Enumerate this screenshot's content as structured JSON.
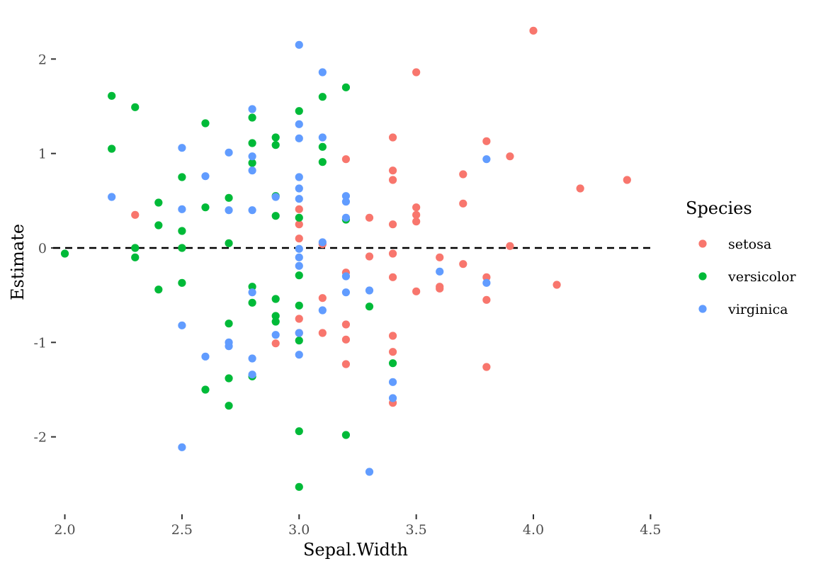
{
  "chart_data": {
    "type": "scatter",
    "xlabel": "Sepal.Width",
    "ylabel": "Estimate",
    "xlim": [
      1.95,
      4.52
    ],
    "ylim": [
      -2.7,
      2.4
    ],
    "x_ticks": [
      2.0,
      2.5,
      3.0,
      3.5,
      4.0,
      4.5
    ],
    "x_tick_labels": [
      "2.0",
      "2.5",
      "3.0",
      "3.5",
      "4.0",
      "4.5"
    ],
    "y_ticks": [
      -2,
      -1,
      0,
      1,
      2
    ],
    "y_tick_labels": [
      "-2",
      "-1",
      "0",
      "1",
      "2"
    ],
    "grid": false,
    "reference_line": {
      "y": 0,
      "style": "dashed"
    },
    "legend": {
      "title": "Species",
      "position": "right"
    },
    "series": [
      {
        "name": "setosa",
        "color": "#F8766D",
        "points": [
          [
            2.3,
            0.35
          ],
          [
            3.0,
            0.41
          ],
          [
            3.0,
            0.25
          ],
          [
            3.0,
            0.1
          ],
          [
            3.0,
            -0.75
          ],
          [
            3.0,
            -0.9
          ],
          [
            2.9,
            -1.01
          ],
          [
            3.1,
            -0.53
          ],
          [
            3.1,
            -0.9
          ],
          [
            3.1,
            0.04
          ],
          [
            3.2,
            0.94
          ],
          [
            3.2,
            -0.26
          ],
          [
            3.2,
            -0.81
          ],
          [
            3.2,
            -0.97
          ],
          [
            3.2,
            -1.23
          ],
          [
            3.3,
            0.32
          ],
          [
            3.3,
            -0.09
          ],
          [
            3.4,
            1.17
          ],
          [
            3.4,
            0.82
          ],
          [
            3.4,
            0.72
          ],
          [
            3.4,
            0.25
          ],
          [
            3.4,
            -0.06
          ],
          [
            3.4,
            -0.31
          ],
          [
            3.4,
            -0.93
          ],
          [
            3.4,
            -1.1
          ],
          [
            3.4,
            -1.64
          ],
          [
            3.5,
            1.86
          ],
          [
            3.5,
            0.43
          ],
          [
            3.5,
            0.35
          ],
          [
            3.5,
            0.28
          ],
          [
            3.5,
            -0.46
          ],
          [
            3.6,
            -0.1
          ],
          [
            3.6,
            -0.41
          ],
          [
            3.6,
            -0.43
          ],
          [
            3.7,
            0.78
          ],
          [
            3.7,
            0.47
          ],
          [
            3.7,
            -0.17
          ],
          [
            3.8,
            1.13
          ],
          [
            3.8,
            -0.31
          ],
          [
            3.8,
            -0.55
          ],
          [
            3.8,
            -1.26
          ],
          [
            3.9,
            0.97
          ],
          [
            3.9,
            0.02
          ],
          [
            4.0,
            2.3
          ],
          [
            4.1,
            -0.39
          ],
          [
            4.2,
            0.63
          ],
          [
            4.4,
            0.72
          ]
        ]
      },
      {
        "name": "versicolor",
        "color": "#00BA38",
        "points": [
          [
            2.0,
            -0.06
          ],
          [
            2.2,
            1.61
          ],
          [
            2.2,
            1.05
          ],
          [
            2.3,
            1.49
          ],
          [
            2.3,
            0.0
          ],
          [
            2.3,
            -0.1
          ],
          [
            2.4,
            0.48
          ],
          [
            2.4,
            0.24
          ],
          [
            2.4,
            -0.44
          ],
          [
            2.5,
            0.75
          ],
          [
            2.5,
            0.18
          ],
          [
            2.5,
            0.0
          ],
          [
            2.5,
            -0.37
          ],
          [
            2.6,
            1.32
          ],
          [
            2.6,
            0.43
          ],
          [
            2.6,
            -1.5
          ],
          [
            2.7,
            0.53
          ],
          [
            2.7,
            0.05
          ],
          [
            2.7,
            -0.8
          ],
          [
            2.7,
            -1.38
          ],
          [
            2.7,
            -1.67
          ],
          [
            2.8,
            1.38
          ],
          [
            2.8,
            1.11
          ],
          [
            2.8,
            0.9
          ],
          [
            2.8,
            -0.41
          ],
          [
            2.8,
            -0.58
          ],
          [
            2.8,
            -1.36
          ],
          [
            2.9,
            1.17
          ],
          [
            2.9,
            1.09
          ],
          [
            2.9,
            0.55
          ],
          [
            2.9,
            0.34
          ],
          [
            2.9,
            -0.54
          ],
          [
            2.9,
            -0.72
          ],
          [
            2.9,
            -0.78
          ],
          [
            3.0,
            1.45
          ],
          [
            3.0,
            0.32
          ],
          [
            3.0,
            -0.29
          ],
          [
            3.0,
            -0.61
          ],
          [
            3.0,
            -0.98
          ],
          [
            3.0,
            -1.94
          ],
          [
            3.0,
            -2.53
          ],
          [
            3.1,
            1.6
          ],
          [
            3.1,
            1.07
          ],
          [
            3.1,
            0.91
          ],
          [
            3.2,
            1.7
          ],
          [
            3.2,
            0.3
          ],
          [
            3.2,
            -1.98
          ],
          [
            3.3,
            -0.62
          ],
          [
            3.4,
            -1.22
          ]
        ]
      },
      {
        "name": "virginica",
        "color": "#619CFF",
        "points": [
          [
            2.2,
            0.54
          ],
          [
            2.5,
            1.06
          ],
          [
            2.5,
            0.41
          ],
          [
            2.5,
            -0.82
          ],
          [
            2.5,
            -2.11
          ],
          [
            2.6,
            0.76
          ],
          [
            2.6,
            -1.15
          ],
          [
            2.7,
            1.01
          ],
          [
            2.7,
            0.4
          ],
          [
            2.7,
            -1.0
          ],
          [
            2.7,
            -1.04
          ],
          [
            2.8,
            1.47
          ],
          [
            2.8,
            0.97
          ],
          [
            2.8,
            0.82
          ],
          [
            2.8,
            0.4
          ],
          [
            2.8,
            -0.47
          ],
          [
            2.8,
            -1.17
          ],
          [
            2.8,
            -1.34
          ],
          [
            2.9,
            0.54
          ],
          [
            2.9,
            -0.92
          ],
          [
            3.0,
            2.15
          ],
          [
            3.0,
            1.31
          ],
          [
            3.0,
            1.16
          ],
          [
            3.0,
            0.75
          ],
          [
            3.0,
            0.63
          ],
          [
            3.0,
            0.52
          ],
          [
            3.0,
            -0.01
          ],
          [
            3.0,
            -0.1
          ],
          [
            3.0,
            -0.19
          ],
          [
            3.0,
            -0.9
          ],
          [
            3.0,
            -1.13
          ],
          [
            3.1,
            1.86
          ],
          [
            3.1,
            1.17
          ],
          [
            3.1,
            0.06
          ],
          [
            3.1,
            -0.66
          ],
          [
            3.2,
            0.55
          ],
          [
            3.2,
            0.49
          ],
          [
            3.2,
            0.32
          ],
          [
            3.2,
            -0.3
          ],
          [
            3.2,
            -0.47
          ],
          [
            3.3,
            -0.45
          ],
          [
            3.3,
            -2.37
          ],
          [
            3.4,
            -1.42
          ],
          [
            3.4,
            -1.59
          ],
          [
            3.6,
            -0.25
          ],
          [
            3.8,
            0.94
          ],
          [
            3.8,
            -0.37
          ]
        ]
      }
    ]
  }
}
